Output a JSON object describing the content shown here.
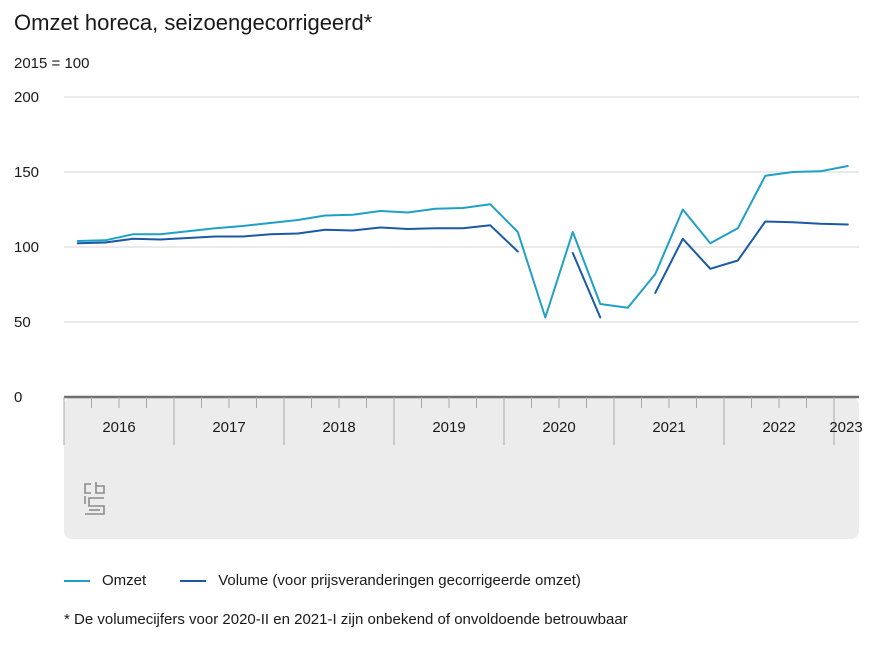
{
  "chart_data": {
    "type": "line",
    "title": "Omzet horeca, seizoengecorrigeerd*",
    "subtitle": "2015 = 100",
    "ylim": [
      0,
      200
    ],
    "yticks": [
      "0",
      "50",
      "100",
      "150",
      "200"
    ],
    "x": [
      "2016-I",
      "2016-II",
      "2016-III",
      "2016-IV",
      "2017-I",
      "2017-II",
      "2017-III",
      "2017-IV",
      "2018-I",
      "2018-II",
      "2018-III",
      "2018-IV",
      "2019-I",
      "2019-II",
      "2019-III",
      "2019-IV",
      "2020-I",
      "2020-II",
      "2020-III",
      "2020-IV",
      "2021-I",
      "2021-II",
      "2021-III",
      "2021-IV",
      "2022-I",
      "2022-II",
      "2022-III",
      "2022-IV",
      "2023-I",
      "2023-II"
    ],
    "year_labels": [
      "2016",
      "2017",
      "2018",
      "2019",
      "2020",
      "2021",
      "2022",
      "2023"
    ],
    "series": [
      {
        "name": "Omzet",
        "color": "#1fa0c6",
        "values": [
          104,
          104.5,
          108.5,
          108.5,
          110.5,
          112.5,
          114,
          116,
          118,
          121,
          121.5,
          124,
          123,
          125.5,
          126,
          128.5,
          110,
          53,
          110,
          62,
          59.5,
          82,
          125,
          102.5,
          112.5,
          147.5,
          150,
          150.5,
          154,
          null
        ]
      },
      {
        "name": "Volume (voor prijsveranderingen gecorrigeerde omzet)",
        "color": "#1a5aa5",
        "values": [
          102.5,
          103,
          105.5,
          105,
          106,
          107,
          107,
          108.5,
          109,
          111.5,
          111,
          113,
          112,
          112.5,
          112.5,
          114.5,
          97,
          null,
          96,
          53,
          null,
          69.5,
          105.5,
          85.5,
          91,
          117,
          116.5,
          115.5,
          115,
          null
        ]
      }
    ],
    "footnote": "* De volumecijfers voor 2020-II en 2021-I zijn onbekend of onvoldoende betrouwbaar"
  }
}
